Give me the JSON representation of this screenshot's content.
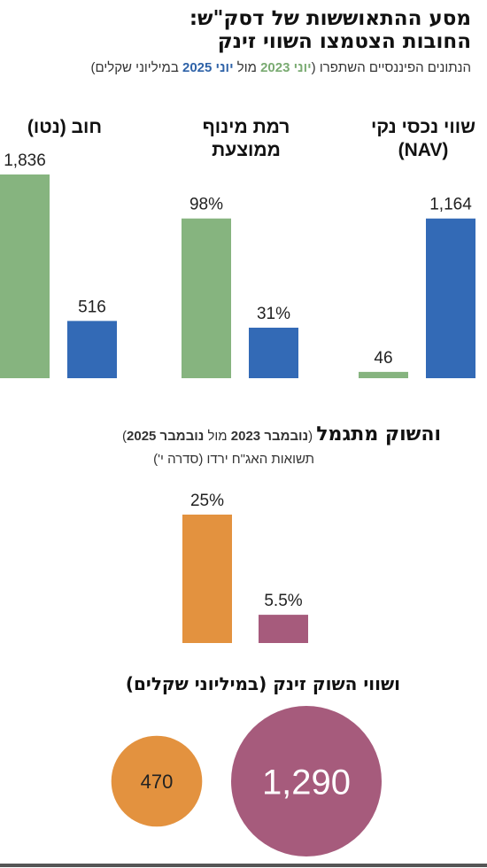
{
  "title": {
    "line1": "מסע ההתאוששות של דסק\"ש:",
    "line2": "החובות הצטמצו השווי זינק"
  },
  "subtitle": {
    "prefix": "הנתונים הפיננסיים השתפרו (",
    "y1": "יוני 2023",
    "mid": " מול ",
    "y2": "יוני 2025",
    "suffix": " במיליוני שקלים)"
  },
  "section2": {
    "title": "והשוק מתגמל",
    "paren_open": " (",
    "y1": "נובמבר 2023",
    "mid": " מול ",
    "y2": "נובמבר 2025",
    "paren_close": ")",
    "subtitle": "תשואות האג\"ח ירדו (סדרה י')"
  },
  "section3": {
    "title": "ושווי השוק זינק (במיליוני שקלים)"
  },
  "colors": {
    "green": "#86b47f",
    "blue": "#336ab6",
    "orange": "#e3923f",
    "purple": "#a65b7c"
  },
  "chart_data": [
    {
      "type": "bar",
      "series": [
        {
          "name": "יוני 2023",
          "color": "#86b47f"
        },
        {
          "name": "יוני 2025",
          "color": "#336ab6"
        }
      ],
      "panels": [
        {
          "label_lines": [
            "חוב (נטו)"
          ],
          "values": [
            1836,
            516
          ],
          "value_labels": [
            "1,836",
            "516"
          ],
          "max": 1836
        },
        {
          "label_lines": [
            "רמת מינוף",
            "ממוצעת"
          ],
          "values": [
            98,
            31
          ],
          "value_labels": [
            "98%",
            "31%"
          ],
          "max": 125
        },
        {
          "label_lines": [
            "שווי נכסי נקי",
            "(NAV)"
          ],
          "values": [
            46,
            1164
          ],
          "value_labels": [
            "46",
            "1,164"
          ],
          "max": 1485
        }
      ]
    },
    {
      "type": "bar",
      "series": [
        {
          "name": "נובמבר 2023",
          "color": "#e3923f"
        },
        {
          "name": "נובמבר 2025",
          "color": "#a65b7c"
        }
      ],
      "values": [
        25,
        5.5
      ],
      "value_labels": [
        "25%",
        "5.5%"
      ],
      "max": 25
    },
    {
      "type": "bubble",
      "series": [
        {
          "name": "נובמבר 2023",
          "color": "#e3923f"
        },
        {
          "name": "נובמבר 2025",
          "color": "#a65b7c"
        }
      ],
      "values": [
        470,
        1290
      ],
      "value_labels": [
        "470",
        "1,290"
      ]
    }
  ]
}
